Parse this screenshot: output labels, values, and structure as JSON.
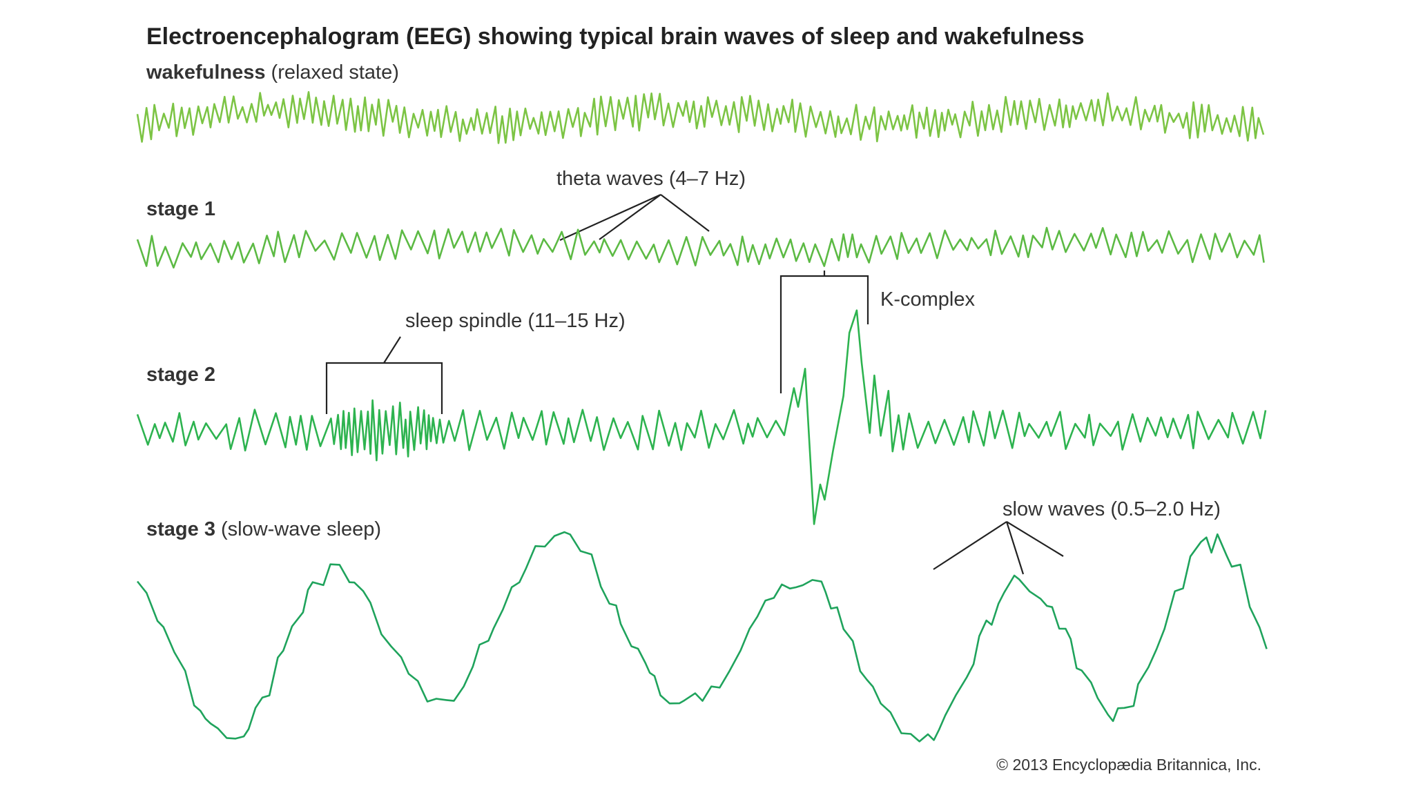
{
  "header": {
    "title": "Electroencephalogram (EEG) showing typical brain waves of sleep and wakefulness"
  },
  "traces": [
    {
      "name": "wakefulness",
      "note": "(relaxed state)"
    },
    {
      "name": "stage 1"
    },
    {
      "name": "stage 2"
    },
    {
      "name": "stage 3",
      "note": "(slow-wave sleep)"
    }
  ],
  "annotations": {
    "theta": "theta waves (4–7 Hz)",
    "spindle": "sleep spindle (11–15 Hz)",
    "kcomplex": "K-complex",
    "slow": "slow waves (0.5–2.0 Hz)"
  },
  "footer": {
    "copyright": "© 2013 Encyclopædia Britannica, Inc."
  }
}
